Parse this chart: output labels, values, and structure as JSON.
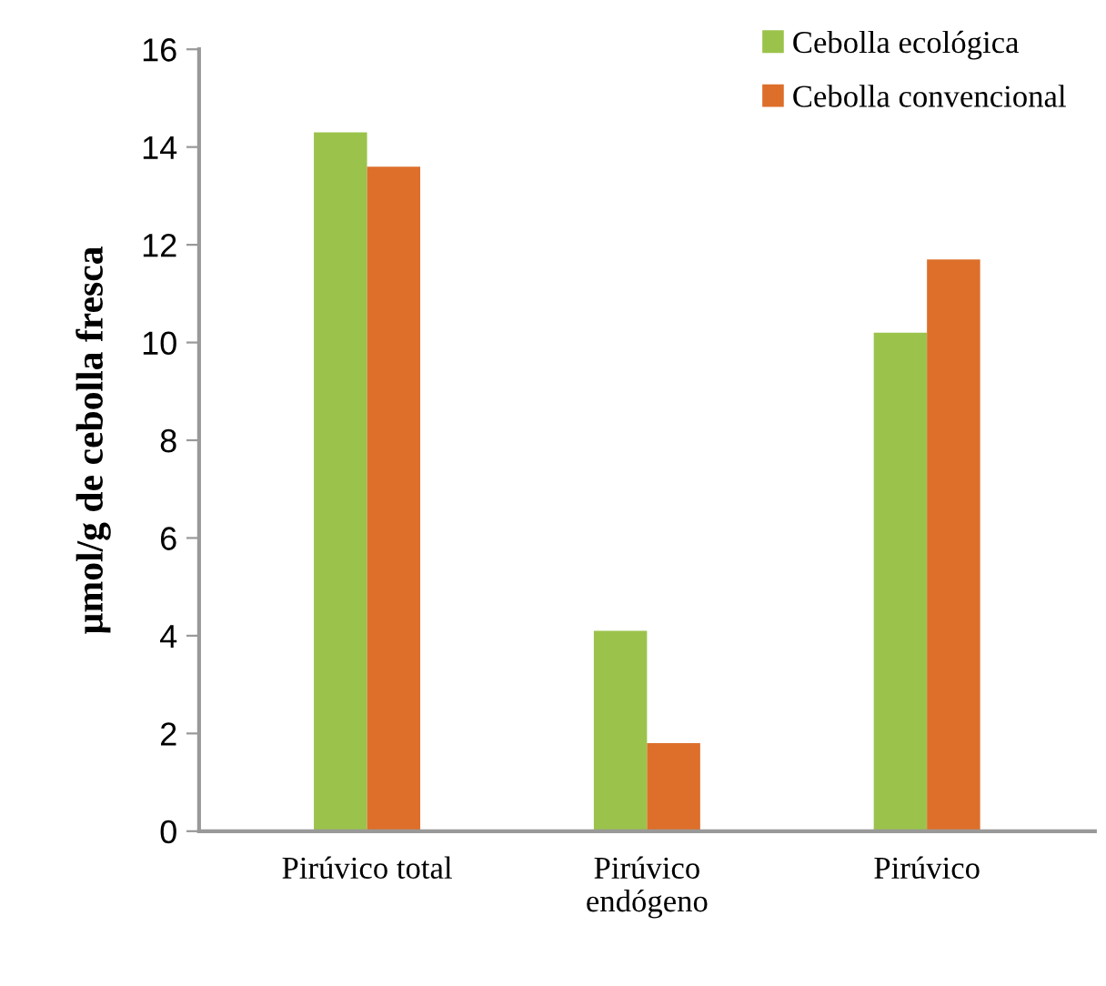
{
  "chart_data": {
    "type": "bar",
    "ylabel": "µmol/g de cebolla fresca",
    "categories": [
      "Pirúvico total",
      "Pirúvico\nendógeno",
      "Pirúvico"
    ],
    "series": [
      {
        "name": "Cebolla ecológica",
        "color": "#9bc34b",
        "values": [
          14.3,
          4.1,
          10.2
        ]
      },
      {
        "name": "Cebolla convencional",
        "color": "#dd6f2b",
        "values": [
          13.6,
          1.8,
          11.7
        ]
      }
    ],
    "ylim": [
      0,
      16
    ],
    "yticks": [
      0,
      2,
      4,
      6,
      8,
      10,
      12,
      14,
      16
    ],
    "grid": false,
    "legend": "top right"
  }
}
